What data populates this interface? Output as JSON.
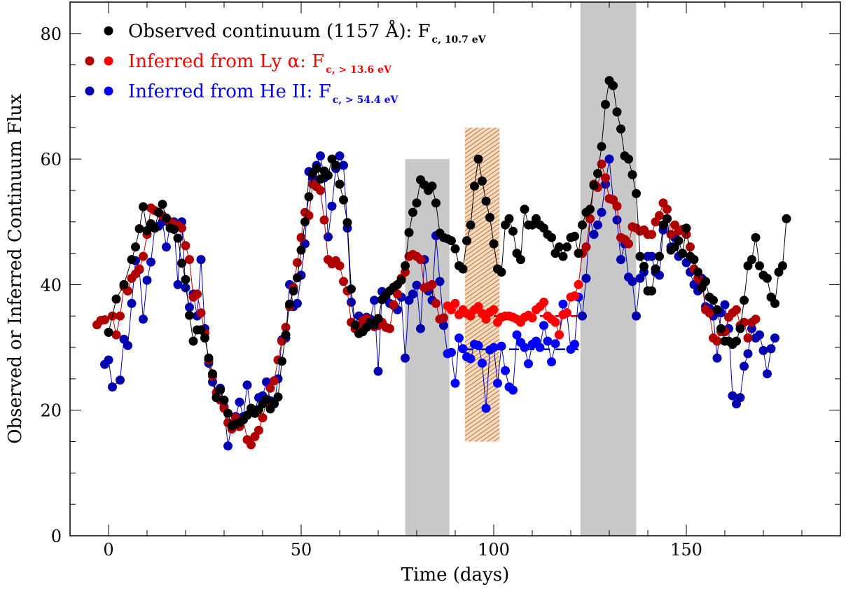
{
  "chart_data": {
    "type": "scatter",
    "xlabel": "Time (days)",
    "ylabel": "Observed or Inferred Continuum Flux",
    "xlim": [
      -10,
      190
    ],
    "ylim": [
      0,
      85
    ],
    "xticks": [
      0,
      50,
      100,
      150
    ],
    "yticks": [
      0,
      20,
      40,
      60,
      80
    ],
    "grid": false,
    "legend_position": "top-left",
    "colors": {
      "observed": "#000000",
      "lya_dark": "#b00000",
      "lya": "#ff0000",
      "heii_dark": "#0000b0",
      "heii": "#0000ff",
      "gray_band": "#c8c8c8",
      "hatch_band": "#c87838"
    },
    "shaded_regions": [
      {
        "kind": "gray",
        "x": [
          77,
          88.5
        ],
        "y": [
          0,
          60
        ]
      },
      {
        "kind": "hatched",
        "x": [
          92.5,
          101.5
        ],
        "y": [
          15,
          65
        ]
      },
      {
        "kind": "gray",
        "x": [
          122.5,
          137
        ],
        "y": [
          0,
          85
        ]
      }
    ],
    "reference_lines": [
      {
        "series": "lya",
        "x": [
          92,
          122
        ],
        "y": 35
      },
      {
        "series": "heii",
        "x": [
          92,
          122
        ],
        "y": 29.7
      }
    ],
    "series": [
      {
        "name": "Observed continuum (1157 Å): F",
        "subscript": "c, 10.7 eV",
        "key": "observed",
        "x": [
          0,
          2,
          4,
          6,
          7,
          8,
          9,
          10,
          11,
          12,
          13,
          14,
          15,
          16,
          17,
          18,
          19,
          20,
          21,
          22,
          23,
          24,
          25,
          26,
          27,
          28,
          29,
          30,
          31,
          32,
          33,
          34,
          35,
          36,
          37,
          38,
          39,
          40,
          41,
          42,
          43,
          44,
          45,
          46,
          47,
          48,
          49,
          50,
          51,
          52,
          53,
          54,
          55,
          56,
          57,
          58,
          59,
          60,
          61,
          62,
          63,
          64,
          65,
          66,
          67,
          68,
          69,
          70,
          71,
          72,
          73,
          74,
          75,
          76,
          77,
          78,
          79,
          80,
          81,
          82,
          83,
          84,
          85,
          86,
          87,
          88,
          89,
          90,
          91,
          92,
          93,
          94,
          95,
          96,
          97,
          98,
          99,
          100,
          101,
          102,
          103,
          104,
          105,
          106,
          107,
          108,
          109,
          110,
          111,
          112,
          113,
          114,
          115,
          116,
          117,
          118,
          119,
          120,
          121,
          122,
          123,
          124,
          125,
          126,
          127,
          128,
          129,
          130,
          131,
          132,
          133,
          134,
          135,
          136,
          137,
          138,
          139,
          140,
          141,
          142,
          143,
          144,
          145,
          146,
          147,
          148,
          149,
          150,
          151,
          152,
          153,
          154,
          155,
          156,
          157,
          158,
          159,
          160,
          161,
          162,
          163,
          164,
          165,
          166,
          167,
          168,
          169,
          170,
          171,
          172,
          173,
          174,
          175,
          176
        ],
        "y": [
          32.4,
          37.7,
          40.0,
          44.0,
          46.0,
          48.9,
          52.4,
          48.6,
          49.7,
          49.0,
          51.5,
          52.8,
          50.6,
          49.0,
          48.8,
          47.4,
          43.4,
          40.8,
          35.1,
          31.0,
          32.8,
          32.8,
          31.5,
          28.3,
          25.8,
          22.0,
          23.2,
          21.6,
          19.5,
          17.5,
          17.8,
          18.0,
          18.5,
          19.2,
          20.3,
          19.5,
          20.1,
          21.0,
          21.7,
          20.2,
          21.1,
          22.1,
          27.8,
          32.0,
          36.9,
          39.0,
          41.1,
          45.5,
          50.0,
          54.0,
          57.7,
          58.5,
          56.8,
          58.1,
          57.4,
          60.0,
          59.0,
          56.0,
          53.5,
          49.9,
          39.3,
          33.6,
          32.2,
          32.5,
          33.2,
          34.0,
          33.6,
          34.6,
          37.6,
          38.4,
          39.0,
          39.6,
          40.0,
          40.7,
          43.0,
          48.3,
          51.5,
          53.0,
          56.7,
          55.9,
          55.0,
          55.7,
          53.0,
          48.2,
          47.5,
          47.3,
          47.0,
          45.7,
          43.0,
          42.5,
          47.0,
          49.5,
          55.7,
          60.0,
          56.5,
          53.3,
          50.7,
          46.5,
          42.5,
          42.0,
          49.5,
          50.5,
          48.5,
          45.0,
          44.0,
          52.0,
          49.5,
          49.5,
          50.5,
          49.5,
          49.0,
          48.0,
          47.5,
          45.0,
          46.0,
          44.5,
          46.0,
          47.5,
          47.7,
          45.0,
          49.5,
          51.5,
          52.0,
          55.8,
          57.7,
          62.0,
          68.7,
          72.5,
          71.7,
          67.5,
          64.8,
          60.5,
          60.0,
          57.5,
          54.5,
          44.5,
          42.9,
          39.0,
          39.0,
          42.5,
          44.5,
          49.5,
          50.5,
          45.5,
          46.0,
          47.0,
          45.0,
          49.0,
          44.5,
          44.0,
          42.0,
          39.5,
          40.5,
          38.0,
          37.5,
          36.0,
          33.0,
          31.0,
          31.0,
          30.5,
          31.0,
          33.0,
          37.5,
          43.0,
          44.0,
          47.5,
          43.0,
          41.5,
          41.0,
          38.0,
          37.0,
          42.0,
          43.0,
          50.5
        ]
      },
      {
        "name": "Inferred from Ly α: F",
        "subscript": "c, > 13.6 eV",
        "key": "lya",
        "x": [
          -3,
          -2,
          -1,
          1,
          2,
          3,
          4,
          5,
          6,
          7,
          8,
          9,
          10,
          11,
          12,
          13,
          14,
          15,
          16,
          17,
          18,
          19,
          20,
          21,
          22,
          23,
          24,
          25,
          26,
          27,
          28,
          29,
          30,
          31,
          32,
          33,
          34,
          35,
          36,
          37,
          38,
          39,
          40,
          41,
          42,
          43,
          44,
          45,
          46,
          47,
          48,
          49,
          50,
          51,
          52,
          53,
          54,
          55,
          56,
          57,
          58,
          59,
          60,
          61,
          62,
          63,
          64,
          65,
          66,
          67,
          68,
          69,
          70,
          71,
          72,
          73,
          74,
          75,
          76,
          77,
          78,
          79,
          80,
          81,
          82,
          83,
          84,
          85,
          86,
          87,
          88,
          89,
          90,
          91,
          92,
          93,
          94,
          95,
          96,
          97,
          98,
          99,
          100,
          101,
          102,
          103,
          104,
          105,
          106,
          107,
          108,
          109,
          110,
          111,
          112,
          113,
          114,
          115,
          116,
          117,
          118,
          119,
          120,
          121,
          122,
          123,
          124,
          125,
          126,
          127,
          128,
          129,
          130,
          131,
          132,
          133,
          134,
          135,
          136,
          137,
          138,
          139,
          140,
          141,
          142,
          143,
          144,
          145,
          146,
          147,
          148,
          149,
          150,
          151,
          152,
          153,
          154,
          155,
          156,
          157,
          158,
          159,
          160,
          161,
          162,
          163,
          164,
          165,
          166,
          167,
          168
        ],
        "y": [
          33.6,
          34.3,
          34.4,
          35.0,
          32.0,
          35.0,
          39.7,
          39.0,
          41.0,
          41.7,
          42.5,
          44.5,
          48.0,
          52.2,
          51.8,
          51.5,
          51.0,
          50.5,
          50.0,
          49.6,
          49.5,
          49.0,
          46.2,
          44.0,
          38.0,
          38.5,
          35.5,
          32.3,
          28.0,
          25.4,
          22.8,
          21.6,
          20.3,
          18.0,
          17.0,
          18.8,
          17.4,
          18.5,
          15.3,
          14.5,
          15.8,
          16.8,
          18.8,
          21.5,
          23.5,
          24.7,
          28.0,
          31.0,
          33.2,
          36.5,
          39.5,
          43.5,
          47.5,
          51.5,
          51.0,
          56.0,
          55.6,
          55.0,
          50.3,
          44.0,
          43.3,
          43.8,
          43.0,
          40.5,
          39.0,
          34.0,
          33.0,
          33.3,
          34.3,
          34.6,
          33.8,
          33.3,
          33.5,
          34.0,
          33.2,
          33.0,
          36.8,
          38.5,
          41.0,
          42.0,
          44.5,
          44.8,
          44.5,
          44.0,
          39.5,
          39.7,
          40.0,
          37.0,
          34.5,
          34.7,
          36.6,
          36.0,
          37.0,
          35.2,
          36.0,
          35.4,
          35.0,
          36.0,
          36.5,
          35.4,
          34.5,
          35.6,
          36.0,
          34.0,
          34.8,
          35.0,
          35.0,
          34.8,
          34.5,
          34.0,
          34.8,
          35.1,
          34.7,
          36.0,
          36.5,
          37.2,
          35.0,
          34.5,
          34.0,
          32.0,
          35.2,
          35.5,
          38.0,
          38.2,
          40.0,
          45.0,
          46.0,
          50.5,
          56.0,
          55.5,
          59.2,
          57.0,
          53.7,
          53.5,
          52.5,
          47.5,
          47.2,
          46.5,
          49.2,
          49.0,
          48.5,
          48.7,
          48.0,
          48.0,
          50.0,
          51.0,
          53.0,
          52.0,
          48.0,
          49.5,
          48.5,
          48.8,
          48.0,
          46.0,
          42.5,
          41.0,
          40.5,
          36.0,
          35.5,
          31.5,
          31.0,
          32.5,
          32.5,
          34.8,
          35.5,
          36.0,
          33.5,
          34.0,
          31.5,
          34.0,
          34.5
        ]
      },
      {
        "name": "Inferred from He II: F",
        "subscript": "c, > 54.4 eV",
        "key": "heii",
        "x": [
          -1,
          0,
          1,
          3,
          4,
          5,
          6,
          7,
          8,
          9,
          10,
          11,
          12,
          13,
          14,
          15,
          16,
          17,
          18,
          19,
          20,
          21,
          22,
          23,
          24,
          25,
          26,
          27,
          28,
          29,
          30,
          31,
          32,
          33,
          34,
          35,
          36,
          37,
          38,
          39,
          40,
          41,
          42,
          43,
          44,
          45,
          46,
          47,
          48,
          49,
          50,
          51,
          52,
          53,
          54,
          55,
          56,
          57,
          58,
          59,
          60,
          61,
          62,
          63,
          64,
          65,
          66,
          67,
          68,
          69,
          70,
          71,
          72,
          73,
          74,
          75,
          76,
          77,
          78,
          79,
          80,
          81,
          82,
          83,
          84,
          85,
          86,
          87,
          88,
          89,
          90,
          91,
          92,
          93,
          94,
          95,
          96,
          97,
          98,
          99,
          100,
          101,
          102,
          103,
          104,
          105,
          106,
          107,
          108,
          109,
          110,
          111,
          112,
          113,
          114,
          115,
          116,
          117,
          118,
          119,
          120,
          121,
          122,
          123,
          124,
          125,
          126,
          127,
          128,
          129,
          130,
          131,
          132,
          133,
          134,
          135,
          136,
          137,
          138,
          139,
          140,
          141,
          142,
          143,
          144,
          145,
          146,
          147,
          148,
          149,
          150,
          151,
          152,
          153,
          154,
          155,
          156,
          157,
          158,
          159,
          160,
          161,
          162,
          163,
          164,
          165,
          166,
          167,
          168,
          169,
          170,
          171,
          172,
          173
        ],
        "y": [
          27.3,
          28.0,
          23.7,
          24.8,
          31.3,
          30.3,
          37.0,
          43.8,
          42.4,
          34.5,
          40.7,
          43.6,
          49.0,
          49.3,
          50.0,
          46.0,
          49.5,
          50.0,
          40.0,
          50.0,
          39.5,
          36.4,
          38.5,
          35.0,
          44.0,
          33.0,
          27.5,
          24.5,
          22.0,
          23.5,
          20.5,
          14.3,
          17.8,
          19.0,
          21.3,
          19.0,
          24.0,
          19.8,
          20.0,
          22.0,
          22.3,
          24.5,
          21.5,
          21.0,
          25.0,
          31.2,
          31.5,
          40.0,
          36.5,
          37.0,
          41.5,
          46.5,
          58.0,
          57.0,
          59.0,
          60.5,
          57.0,
          47.6,
          52.5,
          58.5,
          60.5,
          59.0,
          49.0,
          37.2,
          33.5,
          35.0,
          34.5,
          34.8,
          34.5,
          37.5,
          26.2,
          38.9,
          38.0,
          37.0,
          36.7,
          36.0,
          38.0,
          28.3,
          37.5,
          38.5,
          39.9,
          33.0,
          44.0,
          39.0,
          37.5,
          47.8,
          40.5,
          33.5,
          29.0,
          29.2,
          24.3,
          31.5,
          29.8,
          28.5,
          28.2,
          30.5,
          30.3,
          27.5,
          20.3,
          29.6,
          30.0,
          24.3,
          30.2,
          26.3,
          23.7,
          23.2,
          32.0,
          30.8,
          30.0,
          27.4,
          30.5,
          31.0,
          30.0,
          33.5,
          31.0,
          27.7,
          30.6,
          32.0,
          36.9,
          35.5,
          29.7,
          30.5,
          38.0,
          35.0,
          41.0,
          50.5,
          48.0,
          49.5,
          51.5,
          56.0,
          60.0,
          53.5,
          50.3,
          44.0,
          46.5,
          41.2,
          40.5,
          35.0,
          41.0,
          42.0,
          44.5,
          44.5,
          42.0,
          41.5,
          48.7,
          50.5,
          46.0,
          47.5,
          44.5,
          45.0,
          43.5,
          42.0,
          40.0,
          39.0,
          41.0,
          36.5,
          36.2,
          35.0,
          28.3,
          35.5,
          36.8,
          33.0,
          22.3,
          21.0,
          22.0,
          27.0,
          29.0,
          33.0,
          31.5,
          32.0,
          29.5,
          25.8,
          29.8,
          31.5
        ]
      }
    ]
  }
}
